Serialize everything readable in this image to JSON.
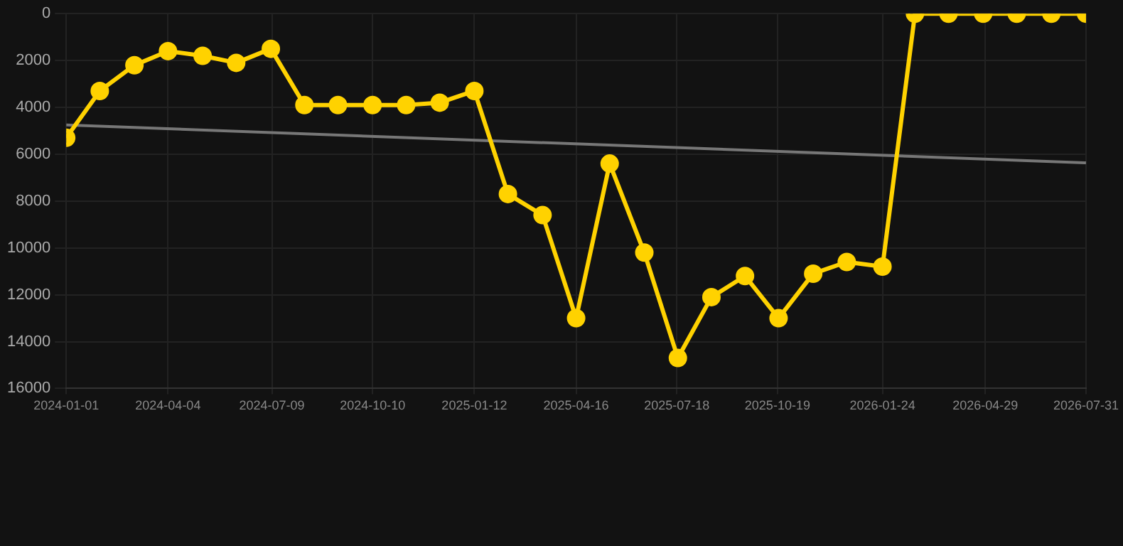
{
  "chart_data": {
    "type": "line",
    "x": [
      "2024-01-01",
      "2024-02-01",
      "2024-03-04",
      "2024-04-04",
      "2024-05-06",
      "2024-06-06",
      "2024-07-08",
      "2024-08-08",
      "2024-09-08",
      "2024-10-10",
      "2024-11-10",
      "2024-12-11",
      "2025-01-12",
      "2025-02-12",
      "2025-03-16",
      "2025-04-16",
      "2025-05-17",
      "2025-06-18",
      "2025-07-19",
      "2025-08-19",
      "2025-09-19",
      "2025-10-20",
      "2025-11-21",
      "2025-12-22",
      "2026-01-24",
      "2026-02-23",
      "2026-03-26",
      "2026-04-27",
      "2026-05-28",
      "2026-06-29",
      "2026-07-31"
    ],
    "series": [
      {
        "color": "#ffd200",
        "marker": "circle",
        "values": [
          5300,
          3300,
          2200,
          1600,
          1800,
          2100,
          1500,
          3900,
          3900,
          3900,
          3900,
          3800,
          3300,
          7700,
          8600,
          13000,
          6400,
          10200,
          14700,
          12100,
          11200,
          13000,
          11100,
          10600,
          10800,
          0,
          0,
          0,
          0,
          0,
          0
        ]
      },
      {
        "type": "line",
        "color": "#777777",
        "marker": "none",
        "x": [
          "2024-01-01",
          "2026-07-31"
        ],
        "values": [
          4750,
          6370
        ]
      }
    ],
    "xlim": [
      "2024-01-01",
      "2026-07-31"
    ],
    "xticks": [
      "2024-01-01",
      "2024-04-04",
      "2024-07-09",
      "2024-10-10",
      "2025-01-12",
      "2025-04-16",
      "2025-07-18",
      "2025-10-19",
      "2026-01-24",
      "2026-04-29",
      "2026-07-31"
    ],
    "ylim": [
      16000,
      0
    ],
    "yticks": [
      0,
      2000,
      4000,
      6000,
      8000,
      10000,
      12000,
      14000,
      16000
    ],
    "grid": true,
    "legend": false
  }
}
